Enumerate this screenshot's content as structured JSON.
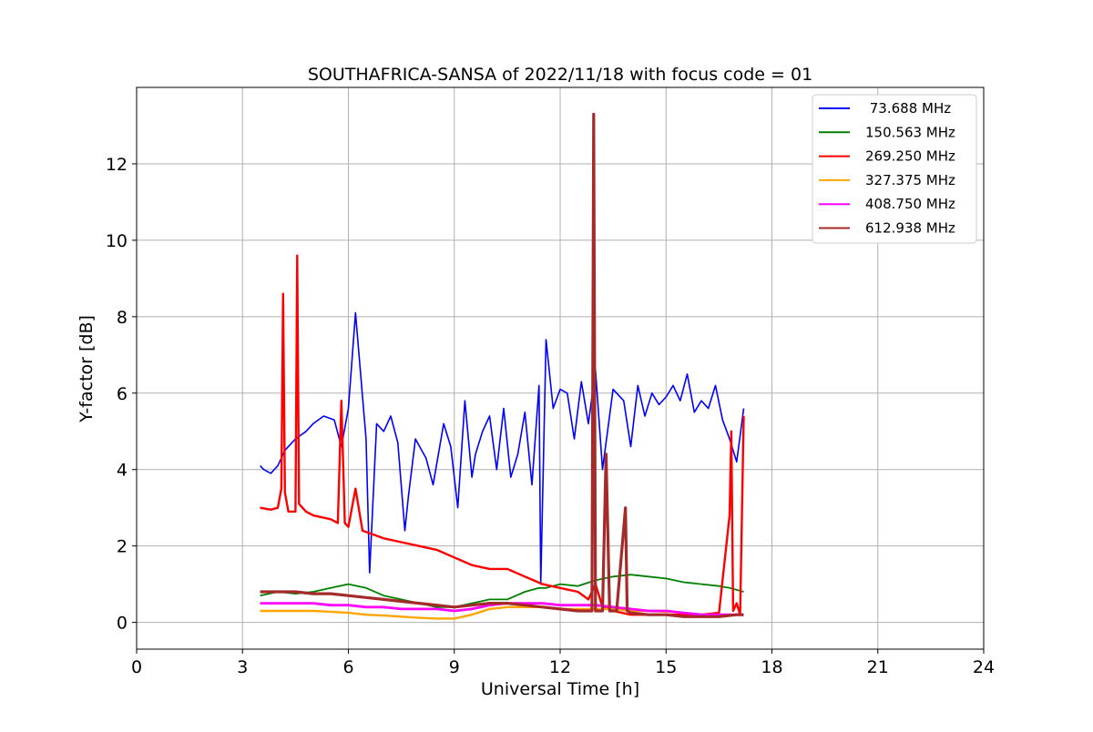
{
  "chart_data": {
    "type": "line",
    "title": "SOUTHAFRICA-SANSA of 2022/11/18 with focus code = 01",
    "xlabel": "Universal Time [h]",
    "ylabel": "Y-factor [dB]",
    "xlim": [
      0,
      24
    ],
    "ylim": [
      -0.7,
      14.0
    ],
    "xticks": [
      0,
      3,
      6,
      9,
      12,
      15,
      18,
      21,
      24
    ],
    "yticks": [
      0,
      2,
      4,
      6,
      8,
      10,
      12
    ],
    "xtick_labels": [
      "0",
      "3",
      "6",
      "9",
      "12",
      "15",
      "18",
      "21",
      "24"
    ],
    "ytick_labels": [
      "0",
      "2",
      "4",
      "6",
      "8",
      "10",
      "12"
    ],
    "grid": true,
    "legend_position": "top-right",
    "series": [
      {
        "name": " 73.688 MHz",
        "color": "#0000ff",
        "x": [
          3.5,
          3.6,
          3.8,
          4.0,
          4.2,
          4.5,
          4.8,
          5.0,
          5.3,
          5.6,
          5.8,
          6.0,
          6.2,
          6.5,
          6.6,
          6.8,
          7.0,
          7.2,
          7.4,
          7.6,
          7.7,
          7.9,
          8.2,
          8.4,
          8.7,
          8.9,
          9.1,
          9.3,
          9.5,
          9.6,
          9.8,
          10.0,
          10.2,
          10.4,
          10.6,
          10.8,
          11.0,
          11.2,
          11.4,
          11.45,
          11.6,
          11.8,
          12.0,
          12.2,
          12.4,
          12.6,
          12.8,
          13.0,
          13.2,
          13.5,
          13.8,
          14.0,
          14.2,
          14.4,
          14.6,
          14.8,
          15.0,
          15.2,
          15.4,
          15.6,
          15.8,
          16.0,
          16.2,
          16.4,
          16.6,
          16.8,
          17.0,
          17.2
        ],
        "y": [
          4.1,
          4.0,
          3.9,
          4.1,
          4.5,
          4.8,
          5.0,
          5.2,
          5.4,
          5.3,
          4.6,
          5.6,
          8.1,
          4.8,
          1.3,
          5.2,
          5.0,
          5.4,
          4.7,
          2.4,
          3.3,
          4.8,
          4.3,
          3.6,
          5.2,
          4.6,
          3.0,
          5.8,
          3.8,
          4.4,
          5.0,
          5.4,
          4.0,
          5.6,
          3.8,
          4.4,
          5.5,
          3.6,
          6.2,
          1.0,
          7.4,
          5.6,
          6.1,
          6.0,
          4.8,
          6.3,
          5.2,
          6.6,
          4.0,
          6.1,
          5.8,
          4.6,
          6.2,
          5.4,
          6.0,
          5.7,
          5.9,
          6.2,
          5.8,
          6.5,
          5.5,
          5.8,
          5.6,
          6.2,
          5.3,
          4.8,
          4.2,
          5.6
        ]
      },
      {
        "name": "150.563 MHz",
        "color": "#008000",
        "x": [
          3.5,
          4.0,
          4.5,
          5.0,
          5.5,
          6.0,
          6.5,
          7.0,
          7.5,
          8.0,
          8.5,
          9.0,
          9.5,
          10.0,
          10.5,
          11.0,
          11.4,
          11.6,
          12.0,
          12.5,
          13.0,
          13.5,
          14.0,
          14.5,
          15.0,
          15.5,
          16.0,
          16.5,
          16.8,
          17.0,
          17.2
        ],
        "y": [
          0.7,
          0.8,
          0.75,
          0.8,
          0.9,
          1.0,
          0.9,
          0.7,
          0.6,
          0.5,
          0.4,
          0.4,
          0.5,
          0.6,
          0.6,
          0.8,
          0.9,
          0.9,
          1.0,
          0.95,
          1.1,
          1.2,
          1.25,
          1.2,
          1.15,
          1.05,
          1.0,
          0.95,
          0.9,
          0.85,
          0.8
        ]
      },
      {
        "name": "269.250 MHz",
        "color": "#ff0000",
        "x": [
          3.5,
          3.8,
          4.0,
          4.1,
          4.15,
          4.2,
          4.3,
          4.5,
          4.55,
          4.6,
          4.8,
          5.0,
          5.5,
          5.7,
          5.8,
          5.9,
          6.0,
          6.2,
          6.4,
          7.0,
          7.5,
          8.0,
          8.5,
          9.0,
          9.5,
          10.0,
          10.5,
          11.0,
          11.5,
          12.0,
          12.5,
          12.8,
          13.0,
          13.2,
          13.5,
          14.0,
          14.5,
          15.0,
          15.5,
          16.0,
          16.5,
          16.8,
          16.85,
          16.9,
          17.0,
          17.1,
          17.2
        ],
        "y": [
          3.0,
          2.95,
          3.0,
          3.5,
          8.6,
          3.4,
          2.9,
          2.9,
          9.6,
          3.1,
          2.9,
          2.8,
          2.7,
          2.6,
          5.8,
          2.6,
          2.5,
          3.5,
          2.4,
          2.2,
          2.1,
          2.0,
          1.9,
          1.7,
          1.5,
          1.4,
          1.4,
          1.2,
          1.0,
          0.9,
          0.8,
          0.6,
          1.0,
          0.4,
          0.3,
          0.2,
          0.2,
          0.2,
          0.2,
          0.2,
          0.25,
          2.8,
          5.0,
          0.3,
          0.5,
          0.2,
          5.4
        ]
      },
      {
        "name": "327.375 MHz",
        "color": "#ffa500",
        "x": [
          3.5,
          4.0,
          4.5,
          5.0,
          5.5,
          6.0,
          6.5,
          7.0,
          7.5,
          8.0,
          8.5,
          9.0,
          9.5,
          10.0,
          10.5,
          11.0,
          11.5,
          12.0,
          12.5,
          13.0,
          13.5,
          14.0,
          14.5,
          15.0,
          15.5,
          16.0,
          16.5,
          17.0,
          17.2
        ],
        "y": [
          0.3,
          0.3,
          0.3,
          0.3,
          0.28,
          0.25,
          0.2,
          0.18,
          0.15,
          0.12,
          0.1,
          0.1,
          0.2,
          0.35,
          0.4,
          0.4,
          0.4,
          0.35,
          0.35,
          0.35,
          0.35,
          0.3,
          0.3,
          0.28,
          0.25,
          0.2,
          0.2,
          0.2,
          0.2
        ]
      },
      {
        "name": "408.750 MHz",
        "color": "#ff00ff",
        "x": [
          3.5,
          4.0,
          4.5,
          5.0,
          5.5,
          6.0,
          6.5,
          7.0,
          7.5,
          8.0,
          8.5,
          9.0,
          9.5,
          10.0,
          10.5,
          11.0,
          11.5,
          12.0,
          12.5,
          13.0,
          13.5,
          14.0,
          14.5,
          15.0,
          15.5,
          16.0,
          16.5,
          17.0,
          17.2
        ],
        "y": [
          0.5,
          0.5,
          0.5,
          0.5,
          0.45,
          0.45,
          0.4,
          0.4,
          0.35,
          0.35,
          0.35,
          0.3,
          0.35,
          0.45,
          0.5,
          0.5,
          0.5,
          0.45,
          0.45,
          0.45,
          0.4,
          0.35,
          0.3,
          0.3,
          0.25,
          0.2,
          0.2,
          0.2,
          0.2
        ]
      },
      {
        "name": "612.938 MHz",
        "color": "#a52a2a",
        "x": [
          3.5,
          4.0,
          4.5,
          5.0,
          5.5,
          6.0,
          6.5,
          7.0,
          7.5,
          8.0,
          8.5,
          9.0,
          9.5,
          10.0,
          10.5,
          11.0,
          11.5,
          12.0,
          12.5,
          12.9,
          12.95,
          13.0,
          13.2,
          13.3,
          13.4,
          13.6,
          13.85,
          13.9,
          14.0,
          14.5,
          15.0,
          15.5,
          16.0,
          16.5,
          17.0,
          17.2
        ],
        "y": [
          0.8,
          0.8,
          0.8,
          0.75,
          0.75,
          0.7,
          0.65,
          0.6,
          0.55,
          0.5,
          0.45,
          0.4,
          0.45,
          0.5,
          0.5,
          0.45,
          0.4,
          0.35,
          0.3,
          0.3,
          13.3,
          0.3,
          0.3,
          4.4,
          0.3,
          0.3,
          3.0,
          0.3,
          0.25,
          0.2,
          0.2,
          0.15,
          0.15,
          0.15,
          0.2,
          0.2
        ]
      }
    ]
  }
}
